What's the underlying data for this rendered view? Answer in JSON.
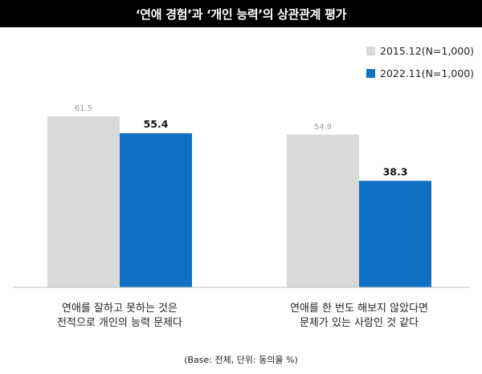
{
  "title": "‘연애 경험’과 ‘개인 능력’의 상관관계 평가",
  "footnote": "(Base: 전체, 단위: 동의율 %)",
  "colors": {
    "series1": "#d9d9d9",
    "series2": "#1070c4",
    "title_bg": "#000000"
  },
  "chart_data": {
    "type": "bar",
    "categories": [
      [
        "연애를 잘하고 못하는 것은",
        "전적으로 개인의 능력 문제다"
      ],
      [
        "연애를 한 번도 해보지 않았다면",
        "문제가 있는 사람인 것 같다"
      ]
    ],
    "series": [
      {
        "name": "2015.12(N=1,000)",
        "values": [
          61.5,
          54.9
        ],
        "labels": [
          "61.5",
          "54.9"
        ]
      },
      {
        "name": "2022.11(N=1,000)",
        "values": [
          55.4,
          38.3
        ],
        "labels": [
          "55.4",
          "38.3"
        ]
      }
    ],
    "ylim": [
      0,
      100
    ],
    "grid": false,
    "legend": "top-right"
  }
}
